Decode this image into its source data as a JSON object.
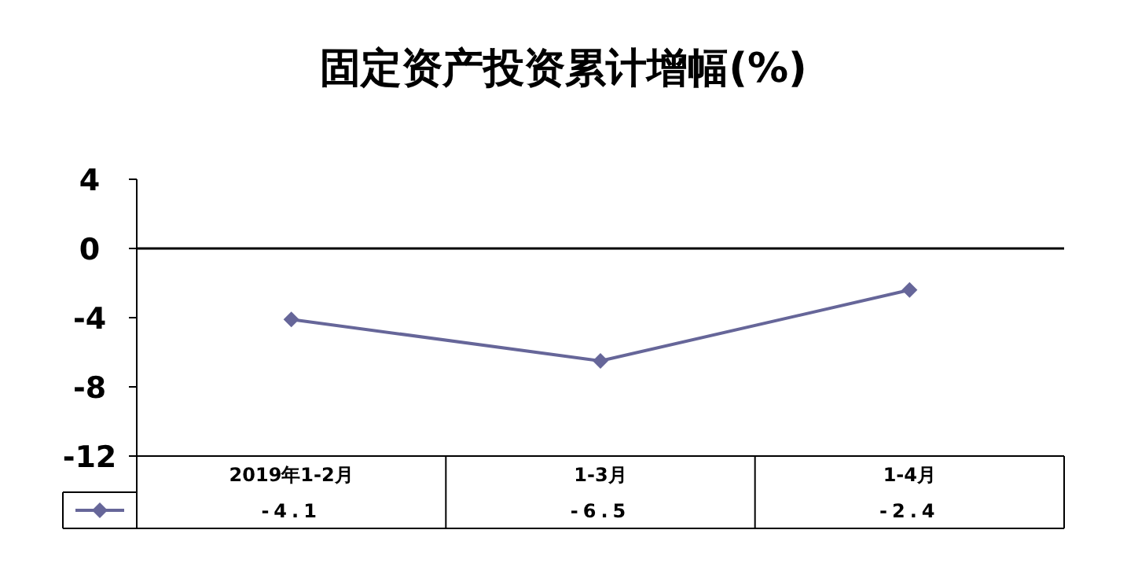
{
  "chart_data": {
    "type": "line",
    "title": "固定资产投资累计增幅(%)",
    "categories": [
      "2019年1-2月",
      "1-3月",
      "1-4月"
    ],
    "series": [
      {
        "color": "#666699",
        "values": [
          -4.1,
          -6.5,
          -2.4
        ]
      }
    ],
    "ylim": [
      -12,
      4
    ],
    "yticks": [
      -12,
      -8,
      -4,
      0,
      4
    ],
    "marker": "diamond",
    "data_labels": true
  }
}
